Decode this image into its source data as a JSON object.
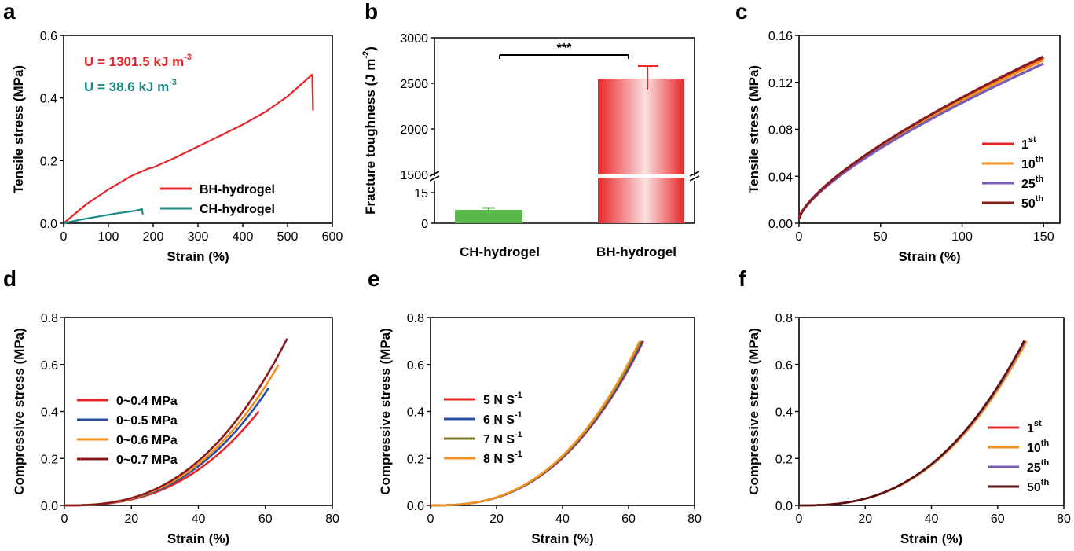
{
  "chart_data": [
    {
      "panel": "a",
      "type": "line",
      "xlabel": "Strain (%)",
      "ylabel": "Tensile stress (MPa)",
      "xlim": [
        0,
        600
      ],
      "ylim": [
        0,
        0.6
      ],
      "xticks": [
        0,
        100,
        200,
        300,
        400,
        500,
        600
      ],
      "yticks": [
        0.0,
        0.2,
        0.4,
        0.6
      ],
      "legend_position": "bottom-right",
      "annotations": [
        {
          "text": "U = 1301.5 kJ m",
          "sup": "-3",
          "color": "#e8262a"
        },
        {
          "text": "U = 38.6 kJ m",
          "sup": "-3",
          "color": "#1a8a84"
        }
      ],
      "series": [
        {
          "name": "BH-hydrogel",
          "color": "#e8262a",
          "x": [
            0,
            50,
            100,
            150,
            190,
            200,
            250,
            300,
            350,
            400,
            450,
            500,
            555,
            556,
            557
          ],
          "y": [
            0,
            0.06,
            0.108,
            0.15,
            0.175,
            0.178,
            0.21,
            0.245,
            0.28,
            0.315,
            0.355,
            0.405,
            0.475,
            0.42,
            0.36
          ]
        },
        {
          "name": "CH-hydrogel",
          "color": "#1a8a84",
          "x": [
            0,
            40,
            80,
            120,
            160,
            175,
            176,
            177
          ],
          "y": [
            0,
            0.012,
            0.022,
            0.032,
            0.04,
            0.045,
            0.035,
            0.028
          ]
        }
      ]
    },
    {
      "panel": "b",
      "type": "bar",
      "ylabel": "Fracture toughness (J m",
      "ylabel_sup": "-2",
      "ylabel_end": ")",
      "categories": [
        "CH-hydrogel",
        "BH-hydrogel"
      ],
      "values": [
        6.5,
        2550
      ],
      "errors": [
        1.0,
        140
      ],
      "colors": [
        "#58b848",
        "#e8262a"
      ],
      "yticks_lower": [
        0,
        15
      ],
      "yticks_upper": [
        1500,
        2000,
        2500,
        3000
      ],
      "significance": "***"
    },
    {
      "panel": "c",
      "type": "line",
      "xlabel": "Strain (%)",
      "ylabel": "Tensile stress (MPa)",
      "xlim": [
        0,
        160
      ],
      "ylim": [
        0,
        0.16
      ],
      "xticks": [
        0,
        50,
        100,
        150
      ],
      "yticks": [
        "0.00",
        "0.04",
        "0.08",
        "0.12",
        "0.16"
      ],
      "legend_position": "bottom-right",
      "series": [
        {
          "name": "1",
          "sup": "st",
          "color": "#e8262a",
          "scale": 0.141
        },
        {
          "name": "10",
          "sup": "th",
          "color": "#f39221",
          "scale": 0.139
        },
        {
          "name": "25",
          "sup": "th",
          "color": "#7a5bb5",
          "scale": 0.136
        },
        {
          "name": "50",
          "sup": "th",
          "color": "#8b1a1a",
          "scale": 0.142
        }
      ]
    },
    {
      "panel": "d",
      "type": "line",
      "xlabel": "Strain (%)",
      "ylabel": "Compressive stress (MPa)",
      "xlim": [
        0,
        80
      ],
      "ylim": [
        0,
        0.8
      ],
      "xticks": [
        0,
        20,
        40,
        60,
        80
      ],
      "yticks": [
        "0.0",
        "0.2",
        "0.4",
        "0.6",
        "0.8"
      ],
      "legend_position": "left",
      "series": [
        {
          "name": "0~0.4 MPa",
          "color": "#e8262a",
          "xmax": 58,
          "ymax": 0.4
        },
        {
          "name": "0~0.5 MPa",
          "color": "#2b4ea3",
          "xmax": 61,
          "ymax": 0.5
        },
        {
          "name": "0~0.6 MPa",
          "color": "#f39221",
          "xmax": 64,
          "ymax": 0.6
        },
        {
          "name": "0~0.7 MPa",
          "color": "#8b1a1a",
          "xmax": 66.5,
          "ymax": 0.71
        }
      ]
    },
    {
      "panel": "e",
      "type": "line",
      "xlabel": "Strain (%)",
      "ylabel": "Compressive stress (MPa)",
      "xlim": [
        0,
        80
      ],
      "ylim": [
        0,
        0.8
      ],
      "xticks": [
        0,
        20,
        40,
        60,
        80
      ],
      "yticks": [
        "0.0",
        "0.2",
        "0.4",
        "0.6",
        "0.8"
      ],
      "legend_position": "left",
      "series": [
        {
          "name": "5 N S",
          "sup": "-1",
          "color": "#e8262a",
          "xmax": 64.5,
          "ymax": 0.7
        },
        {
          "name": "6 N S",
          "sup": "-1",
          "color": "#2b4ea3",
          "xmax": 64.2,
          "ymax": 0.7
        },
        {
          "name": "7 N S",
          "sup": "-1",
          "color": "#7a7a28",
          "xmax": 63.8,
          "ymax": 0.7
        },
        {
          "name": "8 N S",
          "sup": "-1",
          "color": "#f39221",
          "xmax": 63.4,
          "ymax": 0.7
        }
      ]
    },
    {
      "panel": "f",
      "type": "line",
      "xlabel": "Strain (%)",
      "ylabel": "Compressive stress (MPa)",
      "xlim": [
        0,
        80
      ],
      "ylim": [
        0,
        0.8
      ],
      "xticks": [
        0,
        20,
        40,
        60,
        80
      ],
      "yticks": [
        "0.0",
        "0.2",
        "0.4",
        "0.6",
        "0.8"
      ],
      "legend_position": "bottom-right",
      "series": [
        {
          "name": "1",
          "sup": "st",
          "color": "#e8262a",
          "xmax": 68.5,
          "ymax": 0.7
        },
        {
          "name": "10",
          "sup": "th",
          "color": "#f39221",
          "xmax": 68.8,
          "ymax": 0.7
        },
        {
          "name": "25",
          "sup": "th",
          "color": "#7a5bb5",
          "xmax": 68.2,
          "ymax": 0.7
        },
        {
          "name": "50",
          "sup": "th",
          "color": "#5a1010",
          "xmax": 68.0,
          "ymax": 0.7
        }
      ]
    }
  ]
}
